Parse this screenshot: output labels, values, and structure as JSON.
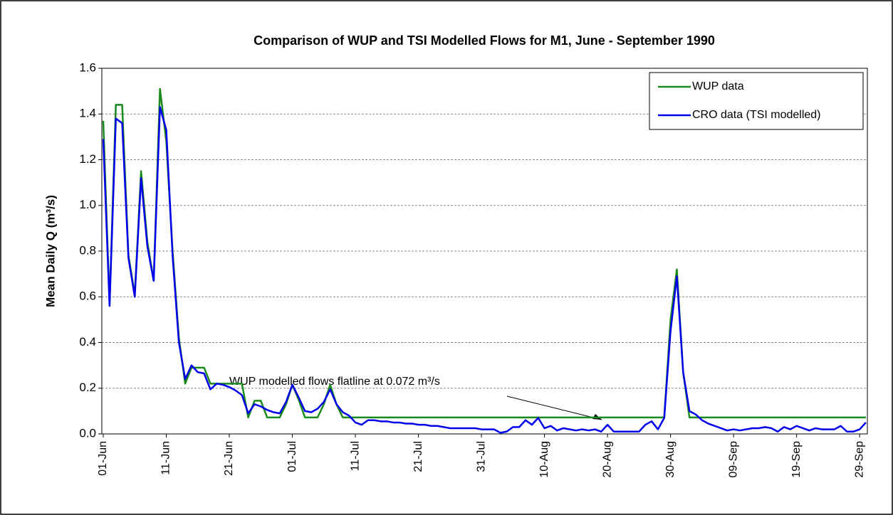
{
  "chart_data": {
    "type": "line",
    "title": "Comparison of WUP and TSI Modelled Flows for M1, June - September 1990",
    "y_label": "Mean Daily Q (m³/s)",
    "annotation": "WUP modelled flows flatline at 0.072  m³/s",
    "legend": "upper right",
    "grid": true,
    "ylim": [
      0,
      1.6
    ],
    "yticks": [
      {
        "value": 0,
        "label": "0.0"
      },
      {
        "value": 0.2,
        "label": "0.2"
      },
      {
        "value": 0.4,
        "label": "0.4"
      },
      {
        "value": 0.6,
        "label": "0.6"
      },
      {
        "value": 0.8,
        "label": "0.8"
      },
      {
        "value": 1,
        "label": "1.0"
      },
      {
        "value": 1.2,
        "label": "1.2"
      },
      {
        "value": 1.4,
        "label": "1.4"
      },
      {
        "value": 1.6,
        "label": "1.6"
      }
    ],
    "categories": [
      "01-Jun",
      null,
      null,
      null,
      null,
      null,
      null,
      null,
      null,
      null,
      "11-Jun",
      null,
      null,
      null,
      null,
      null,
      null,
      null,
      null,
      null,
      "21-Jun",
      null,
      null,
      null,
      null,
      null,
      null,
      null,
      null,
      null,
      "01-Jul",
      null,
      null,
      null,
      null,
      null,
      null,
      null,
      null,
      null,
      "11-Jul",
      null,
      null,
      null,
      null,
      null,
      null,
      null,
      null,
      null,
      "21-Jul",
      null,
      null,
      null,
      null,
      null,
      null,
      null,
      null,
      null,
      "31-Jul",
      null,
      null,
      null,
      null,
      null,
      null,
      null,
      null,
      null,
      "10-Aug",
      null,
      null,
      null,
      null,
      null,
      null,
      null,
      null,
      null,
      "20-Aug",
      null,
      null,
      null,
      null,
      null,
      null,
      null,
      null,
      null,
      "30-Aug",
      null,
      null,
      null,
      null,
      null,
      null,
      null,
      null,
      null,
      "09-Sep",
      null,
      null,
      null,
      null,
      null,
      null,
      null,
      null,
      null,
      "19-Sep",
      null,
      null,
      null,
      null,
      null,
      null,
      null,
      null,
      null,
      "29-Sep",
      null
    ],
    "series": [
      {
        "name": "WUP data",
        "color": "#1a8a1a",
        "values": [
          1.37,
          0.57,
          1.44,
          1.44,
          0.78,
          0.61,
          1.15,
          0.84,
          0.67,
          1.51,
          1.28,
          0.8,
          0.42,
          0.22,
          0.29,
          0.29,
          0.29,
          0.22,
          0.22,
          0.22,
          0.22,
          0.22,
          0.22,
          0.072,
          0.145,
          0.145,
          0.072,
          0.072,
          0.072,
          0.13,
          0.215,
          0.15,
          0.072,
          0.072,
          0.072,
          0.13,
          0.215,
          0.13,
          0.072,
          0.072,
          0.072,
          0.072,
          0.072,
          0.072,
          0.072,
          0.072,
          0.072,
          0.072,
          0.072,
          0.072,
          0.072,
          0.072,
          0.072,
          0.072,
          0.072,
          0.072,
          0.072,
          0.072,
          0.072,
          0.072,
          0.072,
          0.072,
          0.072,
          0.072,
          0.072,
          0.072,
          0.072,
          0.072,
          0.072,
          0.072,
          0.072,
          0.072,
          0.072,
          0.072,
          0.072,
          0.072,
          0.072,
          0.072,
          0.072,
          0.072,
          0.072,
          0.072,
          0.072,
          0.072,
          0.072,
          0.072,
          0.072,
          0.072,
          0.072,
          0.072,
          0.5,
          0.72,
          0.27,
          0.072,
          0.072,
          0.072,
          0.072,
          0.072,
          0.072,
          0.072,
          0.072,
          0.072,
          0.072,
          0.072,
          0.072,
          0.072,
          0.072,
          0.072,
          0.072,
          0.072,
          0.072,
          0.072,
          0.072,
          0.072,
          0.072,
          0.072,
          0.072,
          0.072,
          0.072,
          0.072,
          0.072,
          0.072
        ]
      },
      {
        "name": "CRO data (TSI modelled)",
        "color": "#0000ee",
        "values": [
          1.29,
          0.56,
          1.38,
          1.36,
          0.77,
          0.6,
          1.12,
          0.82,
          0.67,
          1.43,
          1.33,
          0.78,
          0.4,
          0.24,
          0.3,
          0.27,
          0.265,
          0.195,
          0.22,
          0.215,
          0.205,
          0.19,
          0.17,
          0.09,
          0.13,
          0.12,
          0.105,
          0.095,
          0.09,
          0.14,
          0.215,
          0.16,
          0.1,
          0.095,
          0.11,
          0.14,
          0.195,
          0.13,
          0.095,
          0.08,
          0.05,
          0.04,
          0.06,
          0.06,
          0.055,
          0.055,
          0.05,
          0.05,
          0.045,
          0.045,
          0.04,
          0.04,
          0.035,
          0.035,
          0.03,
          0.025,
          0.025,
          0.025,
          0.025,
          0.025,
          0.02,
          0.02,
          0.02,
          0.005,
          0.01,
          0.03,
          0.03,
          0.06,
          0.04,
          0.07,
          0.025,
          0.035,
          0.015,
          0.025,
          0.02,
          0.015,
          0.02,
          0.015,
          0.02,
          0.01,
          0.04,
          0.01,
          0.01,
          0.01,
          0.01,
          0.01,
          0.04,
          0.055,
          0.02,
          0.07,
          0.45,
          0.69,
          0.27,
          0.1,
          0.085,
          0.06,
          0.045,
          0.035,
          0.025,
          0.015,
          0.02,
          0.015,
          0.02,
          0.025,
          0.025,
          0.03,
          0.025,
          0.01,
          0.03,
          0.02,
          0.035,
          0.025,
          0.015,
          0.025,
          0.02,
          0.02,
          0.02,
          0.035,
          0.01,
          0.01,
          0.02,
          0.05
        ]
      }
    ]
  }
}
